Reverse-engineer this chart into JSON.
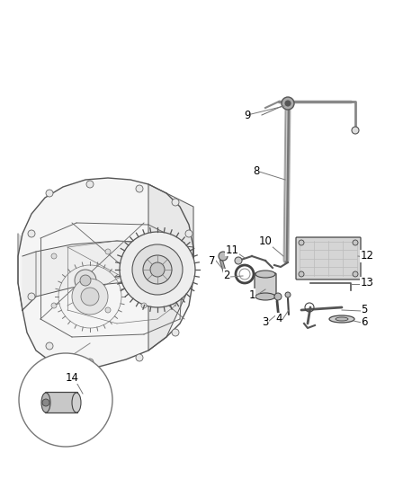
{
  "background_color": "#ffffff",
  "line_color": "#666666",
  "dark_color": "#444444",
  "figsize": [
    4.38,
    5.33
  ],
  "dpi": 100,
  "img_extent": [
    0,
    438,
    0,
    533
  ]
}
